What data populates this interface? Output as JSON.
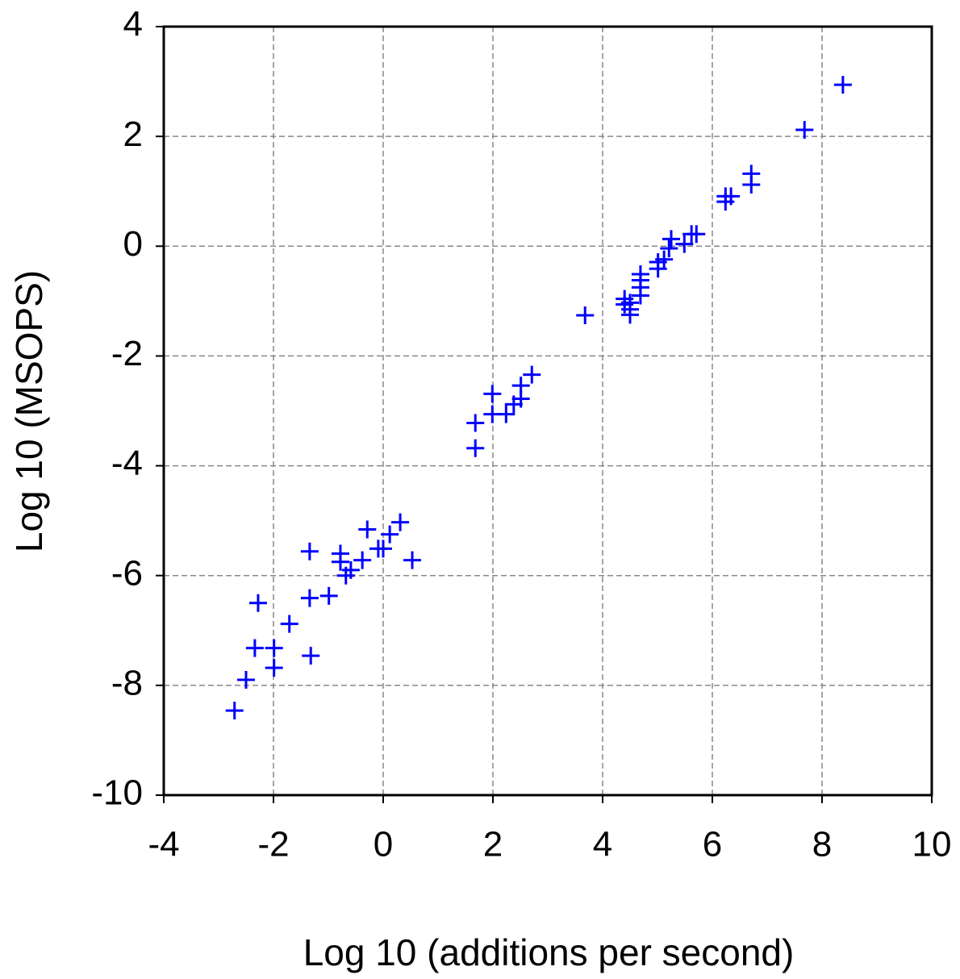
{
  "chart_data": {
    "type": "scatter",
    "x_label": "Log 10 (additions per second)",
    "y_label": "Log 10 (MSOPS)",
    "xlim": [
      -4,
      10
    ],
    "ylim": [
      -10,
      4
    ],
    "xticks": [
      -4,
      -2,
      0,
      2,
      4,
      6,
      8,
      10
    ],
    "yticks": [
      -10,
      -8,
      -6,
      -4,
      -2,
      0,
      2,
      4
    ],
    "grid": true,
    "color": "#0000ff",
    "x": [
      8.38,
      7.68,
      6.71,
      6.71,
      6.34,
      6.24,
      6.24,
      5.71,
      5.62,
      5.49,
      5.25,
      5.21,
      5.12,
      5.01,
      5.01,
      4.69,
      4.69,
      4.69,
      4.69,
      4.4,
      4.4,
      4.5,
      4.5,
      4.5,
      3.68,
      2.71,
      2.51,
      2.51,
      2.38,
      2.24,
      1.99,
      1.99,
      1.68,
      1.68,
      0.31,
      0.12,
      0,
      -0.09,
      0.53,
      -0.29,
      -0.38,
      -0.59,
      -0.68,
      -0.78,
      -0.78,
      -1.34,
      -1.34,
      -0.99,
      -1.32,
      -1.71,
      -1.99,
      -1.99,
      -2.28,
      -2.34,
      -2.5,
      -2.71
    ],
    "y": [
      2.94,
      2.12,
      1.32,
      1.12,
      0.91,
      0.91,
      0.81,
      0.22,
      0.22,
      0.04,
      0.13,
      -0.04,
      -0.24,
      -0.29,
      -0.41,
      -0.51,
      -0.62,
      -0.75,
      -0.9,
      -0.96,
      -1.06,
      -1.03,
      -1.15,
      -1.25,
      -1.26,
      -2.34,
      -2.54,
      -2.78,
      -2.88,
      -3.06,
      -2.69,
      -3.06,
      -3.22,
      -3.68,
      -5.03,
      -5.25,
      -5.51,
      -5.51,
      -5.72,
      -5.16,
      -5.72,
      -5.9,
      -6.0,
      -5.6,
      -5.75,
      -5.56,
      -6.41,
      -6.37,
      -7.46,
      -6.88,
      -7.32,
      -7.68,
      -6.5,
      -7.32,
      -7.9,
      -8.46
    ]
  }
}
